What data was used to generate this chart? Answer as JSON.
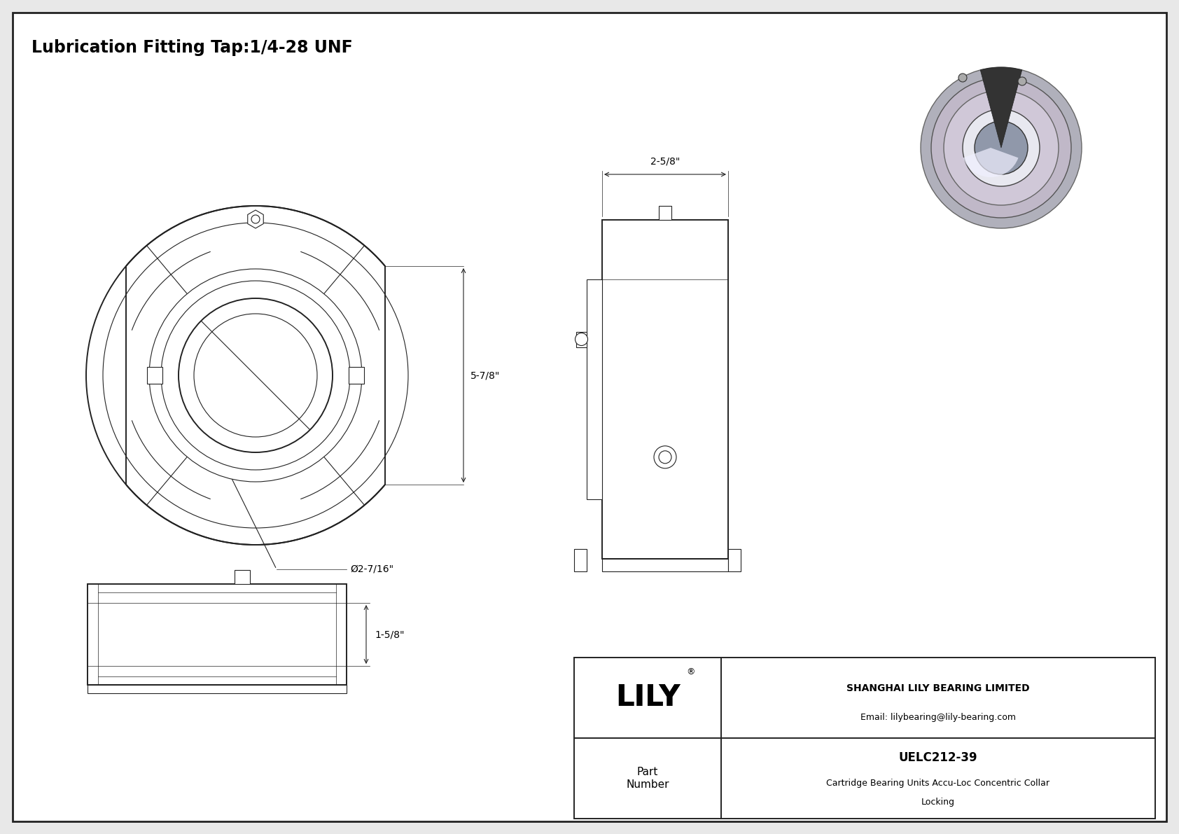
{
  "bg_color": "#e8e8e8",
  "border_color": "#222222",
  "lc": "#222222",
  "title_text": "Lubrication Fitting Tap:1/4-28 UNF",
  "dim_58_text": "2-5/8\"",
  "dim_78_text": "5-7/8\"",
  "dim_dia_text": "Ø2-7/16\"",
  "dim_158_text": "1-5/8\"",
  "company_name": "SHANGHAI LILY BEARING LIMITED",
  "company_email": "Email: lilybearing@lily-bearing.com",
  "part_label": "Part\nNumber",
  "part_number": "UELC212-39",
  "part_desc1": "Cartridge Bearing Units Accu-Loc Concentric Collar",
  "part_desc2": "Locking",
  "lily_text": "LILY",
  "reg_symbol": "®"
}
